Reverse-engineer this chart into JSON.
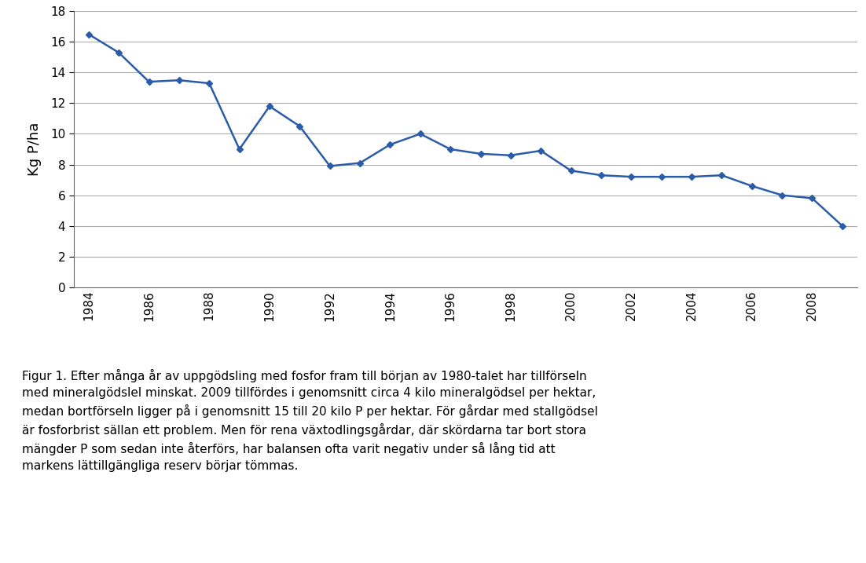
{
  "years": [
    1984,
    1985,
    1986,
    1987,
    1988,
    1989,
    1990,
    1991,
    1992,
    1993,
    1994,
    1995,
    1996,
    1997,
    1998,
    1999,
    2000,
    2001,
    2002,
    2003,
    2004,
    2005,
    2006,
    2007,
    2008,
    2009
  ],
  "values": [
    16.5,
    15.3,
    13.4,
    13.5,
    13.3,
    9.0,
    11.8,
    10.5,
    7.9,
    8.1,
    9.3,
    10.0,
    9.0,
    8.7,
    8.6,
    8.9,
    7.6,
    7.3,
    7.2,
    7.2,
    7.2,
    7.3,
    6.6,
    6.0,
    5.8,
    4.0
  ],
  "line_color": "#2b5ca8",
  "marker": "D",
  "marker_size": 4,
  "line_width": 1.8,
  "ylabel": "Kg P/ha",
  "ylim": [
    0,
    18
  ],
  "yticks": [
    0,
    2,
    4,
    6,
    8,
    10,
    12,
    14,
    16,
    18
  ],
  "grid_color": "#aaaaaa",
  "grid_linewidth": 0.8,
  "background_color": "#ffffff",
  "plot_bg_color": "#ffffff",
  "caption_line1": "Figur 1. Efter många år av uppgödsling med fosfor fram till början av 1980-talet har tillförseln",
  "caption_line2": "med mineralgödslel minskat. 2009 tillfördes i genomsnitt circa 4 kilo mineralgödsel per hektar,",
  "caption_line3": "medan bortförseln ligger på i genomsnitt 15 till 20 kilo P per hektar. För gårdar med stallgödsel",
  "caption_line4": "är fosforbrist sällan ett problem. Men för rena växtodlingsgårdar, där skördarna tar bort stora",
  "caption_line5": "mängder P som sedan inte återförs, har balansen ofta varit negativ under så lång tid att",
  "caption_line6": "markens lättillgängliga reserv börjar tömmas.",
  "caption_bg_color": "#e0e0e0",
  "caption_fontsize": 11,
  "ylabel_fontsize": 13,
  "tick_fontsize": 11
}
